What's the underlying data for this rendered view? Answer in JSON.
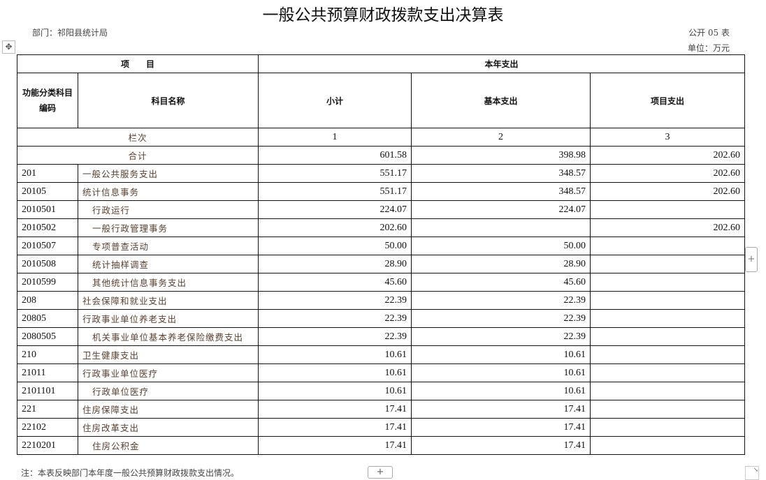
{
  "title": "一般公共预算财政拨款支出决算表",
  "dept": "部门：祁阳县统计局",
  "table_no": "公开 05 表",
  "unit": "单位：万元",
  "header": {
    "project": "项　　目",
    "current_year": "本年支出",
    "code": "功能分类科目编码",
    "name": "科目名称",
    "subtotal": "小计",
    "basic": "基本支出",
    "project_exp": "项目支出"
  },
  "col_index": {
    "label": "栏次",
    "c1": "1",
    "c2": "2",
    "c3": "3"
  },
  "total": {
    "label": "合计",
    "subtotal": "601.58",
    "basic": "398.98",
    "project": "202.60"
  },
  "rows": [
    {
      "code": "201",
      "name": "一般公共服务支出",
      "subtotal": "551.17",
      "basic": "348.57",
      "project": "202.60",
      "level": 1
    },
    {
      "code": "20105",
      "name": "统计信息事务",
      "subtotal": "551.17",
      "basic": "348.57",
      "project": "202.60",
      "level": 2
    },
    {
      "code": "2010501",
      "name": "行政运行",
      "subtotal": "224.07",
      "basic": "224.07",
      "project": "",
      "level": 3
    },
    {
      "code": "2010502",
      "name": "一般行政管理事务",
      "subtotal": "202.60",
      "basic": "",
      "project": "202.60",
      "level": 3
    },
    {
      "code": "2010507",
      "name": "专项普查活动",
      "subtotal": "50.00",
      "basic": "50.00",
      "project": "",
      "level": 3
    },
    {
      "code": "2010508",
      "name": "统计抽样调查",
      "subtotal": "28.90",
      "basic": "28.90",
      "project": "",
      "level": 3
    },
    {
      "code": "2010599",
      "name": "其他统计信息事务支出",
      "subtotal": "45.60",
      "basic": "45.60",
      "project": "",
      "level": 3
    },
    {
      "code": "208",
      "name": "社会保障和就业支出",
      "subtotal": "22.39",
      "basic": "22.39",
      "project": "",
      "level": 1
    },
    {
      "code": "20805",
      "name": "行政事业单位养老支出",
      "subtotal": "22.39",
      "basic": "22.39",
      "project": "",
      "level": 2
    },
    {
      "code": "2080505",
      "name": "机关事业单位基本养老保险缴费支出",
      "subtotal": "22.39",
      "basic": "22.39",
      "project": "",
      "level": 3
    },
    {
      "code": "210",
      "name": "卫生健康支出",
      "subtotal": "10.61",
      "basic": "10.61",
      "project": "",
      "level": 1
    },
    {
      "code": "21011",
      "name": "行政事业单位医疗",
      "subtotal": "10.61",
      "basic": "10.61",
      "project": "",
      "level": 2
    },
    {
      "code": "2101101",
      "name": "行政单位医疗",
      "subtotal": "10.61",
      "basic": "10.61",
      "project": "",
      "level": 3
    },
    {
      "code": "221",
      "name": "住房保障支出",
      "subtotal": "17.41",
      "basic": "17.41",
      "project": "",
      "level": 1
    },
    {
      "code": "22102",
      "name": "住房改革支出",
      "subtotal": "17.41",
      "basic": "17.41",
      "project": "",
      "level": 2
    },
    {
      "code": "2210201",
      "name": "住房公积金",
      "subtotal": "17.41",
      "basic": "17.41",
      "project": "",
      "level": 3
    }
  ],
  "note": "注：本表反映部门本年度一般公共预算财政拨款支出情况。",
  "controls": {
    "add": "+",
    "move": "✥",
    "resize": "↘"
  }
}
